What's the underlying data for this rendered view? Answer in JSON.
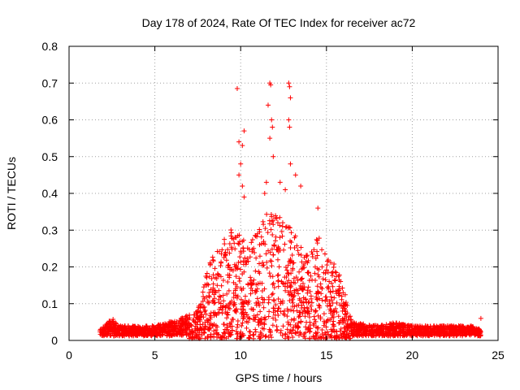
{
  "chart_data": {
    "type": "scatter",
    "title": "Day 178 of 2024, Rate Of TEC Index for receiver ac72",
    "xlabel": "GPS time / hours",
    "ylabel": "ROTI / TECUs",
    "xlim": [
      0,
      25
    ],
    "ylim": [
      0,
      0.8
    ],
    "xticks": [
      "0",
      "5",
      "10",
      "15",
      "20",
      "25"
    ],
    "yticks": [
      "0",
      "0.1",
      "0.2",
      "0.3",
      "0.4",
      "0.5",
      "0.6",
      "0.7",
      "0.8"
    ],
    "grid": true,
    "marker": "plus",
    "series_color": "#ff0000",
    "time_range": [
      1.8,
      24.0
    ],
    "envelope": [
      [
        1.8,
        0.03
      ],
      [
        2.5,
        0.06
      ],
      [
        3.0,
        0.04
      ],
      [
        5.0,
        0.04
      ],
      [
        6.5,
        0.06
      ],
      [
        7.5,
        0.08
      ],
      [
        8.0,
        0.18
      ],
      [
        8.5,
        0.25
      ],
      [
        9.0,
        0.27
      ],
      [
        9.5,
        0.3
      ],
      [
        10.0,
        0.28
      ],
      [
        10.5,
        0.25
      ],
      [
        11.0,
        0.3
      ],
      [
        11.5,
        0.34
      ],
      [
        12.0,
        0.36
      ],
      [
        12.5,
        0.33
      ],
      [
        13.0,
        0.3
      ],
      [
        13.5,
        0.25
      ],
      [
        14.0,
        0.22
      ],
      [
        14.5,
        0.28
      ],
      [
        15.0,
        0.24
      ],
      [
        15.5,
        0.2
      ],
      [
        16.0,
        0.15
      ],
      [
        16.5,
        0.05
      ],
      [
        18.0,
        0.04
      ],
      [
        19.0,
        0.05
      ],
      [
        20.0,
        0.04
      ],
      [
        22.0,
        0.04
      ],
      [
        23.5,
        0.04
      ],
      [
        24.0,
        0.03
      ]
    ],
    "outliers": [
      [
        9.8,
        0.685
      ],
      [
        9.9,
        0.54
      ],
      [
        10.0,
        0.48
      ],
      [
        10.1,
        0.53
      ],
      [
        10.2,
        0.57
      ],
      [
        9.9,
        0.45
      ],
      [
        10.1,
        0.42
      ],
      [
        10.2,
        0.39
      ],
      [
        11.6,
        0.64
      ],
      [
        11.7,
        0.7
      ],
      [
        11.75,
        0.695
      ],
      [
        11.8,
        0.6
      ],
      [
        11.85,
        0.58
      ],
      [
        11.9,
        0.5
      ],
      [
        11.7,
        0.55
      ],
      [
        12.8,
        0.7
      ],
      [
        12.85,
        0.69
      ],
      [
        12.9,
        0.66
      ],
      [
        12.8,
        0.6
      ],
      [
        12.85,
        0.58
      ],
      [
        12.9,
        0.48
      ],
      [
        13.2,
        0.45
      ],
      [
        13.5,
        0.42
      ],
      [
        14.5,
        0.36
      ],
      [
        11.5,
        0.43
      ],
      [
        11.4,
        0.4
      ],
      [
        12.3,
        0.43
      ],
      [
        12.6,
        0.41
      ],
      [
        24.0,
        0.06
      ]
    ]
  }
}
